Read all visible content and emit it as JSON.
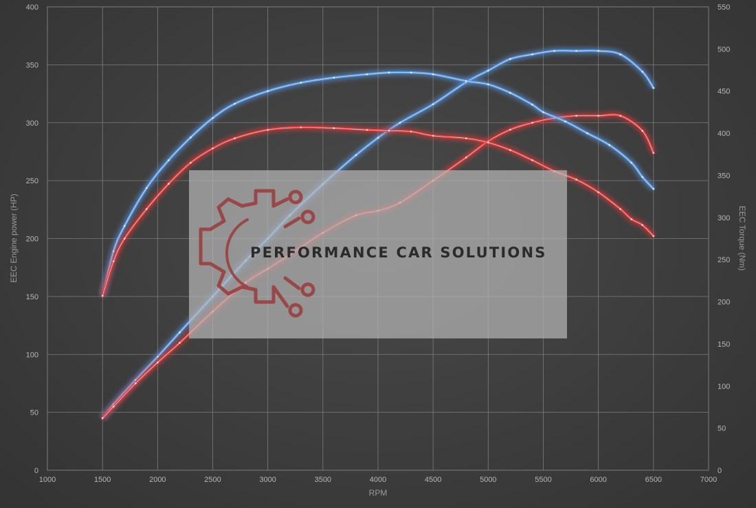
{
  "chart_data": {
    "type": "line",
    "xlabel": "RPM",
    "ylabel": "EEC Engine power (HP)",
    "y2label": "EEC Torque (Nm)",
    "xlim": [
      1000,
      7000
    ],
    "ylim": [
      0,
      400
    ],
    "y2lim": [
      0,
      550
    ],
    "xticks": [
      1000,
      1500,
      2000,
      2500,
      3000,
      3500,
      4000,
      4500,
      5000,
      5500,
      6000,
      6500,
      7000
    ],
    "yticks": [
      0,
      50,
      100,
      150,
      200,
      250,
      300,
      350,
      400
    ],
    "y2ticks": [
      0,
      50,
      100,
      150,
      200,
      250,
      300,
      350,
      400,
      450,
      500,
      550
    ],
    "grid": true,
    "legend": "none",
    "colors": {
      "blue": "#5b9be8",
      "red": "#e23b3b"
    },
    "series": [
      {
        "axis": "left",
        "color": "#5b9be8",
        "x": [
          1500,
          1600,
          1800,
          2000,
          2200,
          2500,
          2800,
          3000,
          3200,
          3500,
          3800,
          4000,
          4200,
          4500,
          4800,
          5000,
          5200,
          5400,
          5600,
          5800,
          6000,
          6200,
          6400,
          6500
        ],
        "y": [
          45,
          57,
          78,
          98,
          119,
          150,
          181,
          200,
          220,
          247,
          272,
          287,
          300,
          316,
          335,
          345,
          355,
          359,
          362,
          362,
          362,
          359,
          344,
          330
        ]
      },
      {
        "axis": "left",
        "color": "#e23b3b",
        "x": [
          1500,
          1600,
          1800,
          2000,
          2200,
          2500,
          2800,
          3000,
          3200,
          3500,
          3800,
          4000,
          4200,
          4500,
          4800,
          5000,
          5200,
          5400,
          5600,
          5800,
          6000,
          6200,
          6400,
          6500
        ],
        "y": [
          45,
          55,
          75,
          93,
          110,
          137,
          162,
          174,
          186,
          205,
          220,
          224,
          231,
          250,
          270,
          284,
          294,
          300,
          304,
          306,
          306,
          306,
          293,
          274
        ]
      },
      {
        "axis": "right",
        "color": "#5b9be8",
        "x": [
          1500,
          1600,
          1700,
          1900,
          2100,
          2300,
          2500,
          2700,
          3000,
          3300,
          3600,
          3900,
          4100,
          4300,
          4500,
          4800,
          5000,
          5200,
          5400,
          5500,
          5700,
          5900,
          6100,
          6300,
          6400,
          6500
        ],
        "y": [
          207,
          260,
          290,
          335,
          368,
          395,
          418,
          435,
          450,
          460,
          466,
          470,
          472,
          472,
          470,
          462,
          458,
          448,
          434,
          425,
          414,
          400,
          386,
          365,
          348,
          334
        ]
      },
      {
        "axis": "right",
        "color": "#e23b3b",
        "x": [
          1500,
          1600,
          1700,
          1900,
          2100,
          2300,
          2500,
          2700,
          3000,
          3300,
          3600,
          3900,
          4100,
          4300,
          4500,
          4800,
          5000,
          5200,
          5400,
          5600,
          5800,
          6000,
          6200,
          6300,
          6400,
          6500
        ],
        "y": [
          207,
          248,
          275,
          310,
          340,
          365,
          382,
          394,
          404,
          407,
          406,
          404,
          403,
          402,
          397,
          394,
          389,
          380,
          368,
          355,
          345,
          330,
          310,
          298,
          291,
          278
        ]
      }
    ]
  },
  "watermark": {
    "text": "PERFORMANCE CAR SOLUTIONS",
    "logo_icon": "gear-circuit-logo-icon",
    "logo_color": "#9a3a3a",
    "panel_color": "#b4b4b4"
  }
}
